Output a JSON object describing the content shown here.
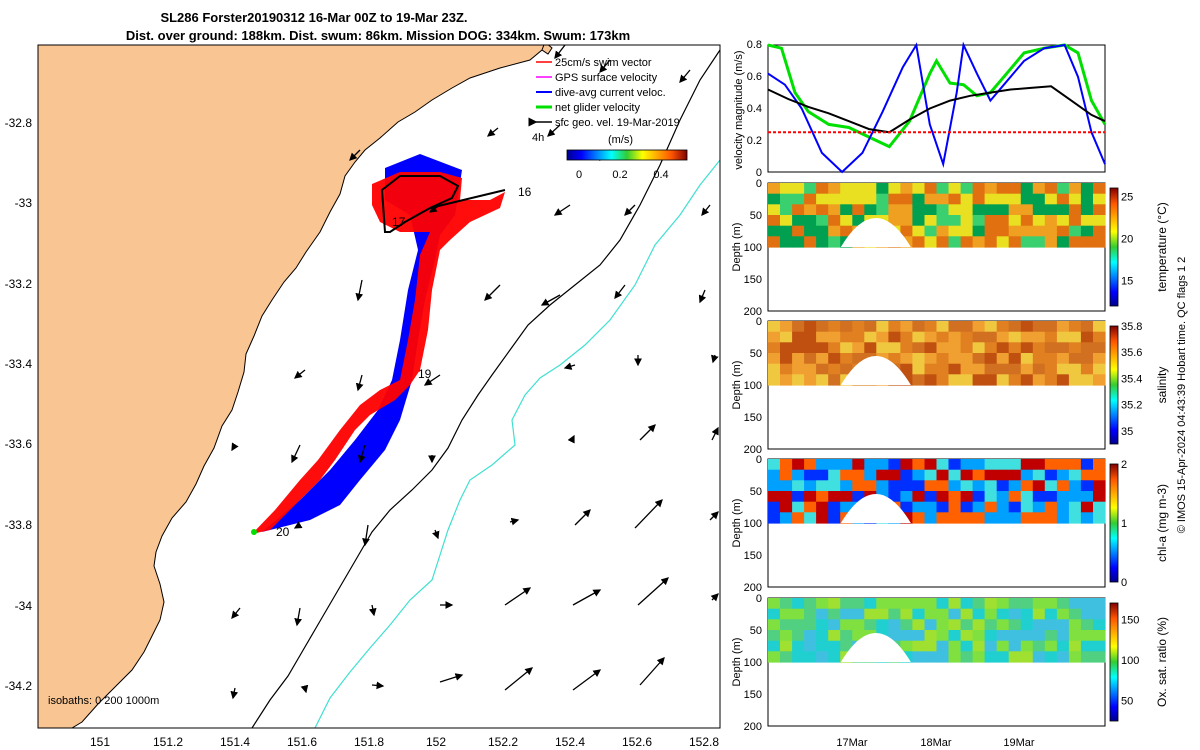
{
  "title": {
    "line1": "SL286 Forster20190312 16-Mar 00Z to 19-Mar 23Z.",
    "line2": "Dist. over ground: 188km. Dist. swum: 86km. Mission DOG: 334km. Swum: 173km"
  },
  "colors": {
    "land": "#f9c593",
    "swim_vector": "#ff0000",
    "gps_velocity": "#ff00ff",
    "dive_avg_current": "#0000ff",
    "net_glider_velocity": "#00e000",
    "sfc_geo_vel": "#000000",
    "isobath_200": "#000000",
    "isobath_1000": "#40e0d0"
  },
  "map": {
    "x_ticks": [
      "151",
      "151.2",
      "151.4",
      "151.6",
      "151.8",
      "152",
      "152.2",
      "152.4",
      "152.6",
      "152.8"
    ],
    "y_ticks": [
      "-32.8",
      "-33",
      "-33.2",
      "-33.4",
      "-33.6",
      "-33.8",
      "-34",
      "-34.2"
    ],
    "legend": [
      {
        "label": "25cm/s swim vector",
        "color": "#ff0000"
      },
      {
        "label": "GPS surface velocity",
        "color": "#ff00ff"
      },
      {
        "label": "dive-avg current veloc.",
        "color": "#0000ff"
      },
      {
        "label": "net glider velocity",
        "color": "#00e000"
      },
      {
        "label": "sfc geo. vel. 19-Mar-2019",
        "color": "#000000"
      }
    ],
    "colorbar_unit": "(m/s)",
    "colorbar_ticks": [
      "0",
      "0.2",
      "0.4"
    ],
    "vector_label": "4h",
    "isobaths_label": "isobaths: 0   200  1000m",
    "day_labels": [
      "16",
      "17",
      "19",
      "20"
    ]
  },
  "chart_data": [
    {
      "type": "line",
      "ylabel": "velocity magnitude (m/s)",
      "ylim": [
        0,
        0.8
      ],
      "y_ticks": [
        "0",
        "0.2",
        "0.4",
        "0.6",
        "0.8"
      ],
      "x_ticks": [
        "17Mar",
        "18Mar",
        "19Mar"
      ],
      "series": [
        {
          "color": "#00e000",
          "x": [
            0,
            0.04,
            0.08,
            0.12,
            0.18,
            0.24,
            0.3,
            0.36,
            0.42,
            0.48,
            0.5,
            0.54,
            0.58,
            0.62,
            0.66,
            0.7,
            0.76,
            0.82,
            0.88,
            0.92,
            0.96,
            1.0
          ],
          "y": [
            0.82,
            0.78,
            0.5,
            0.38,
            0.3,
            0.28,
            0.22,
            0.16,
            0.32,
            0.62,
            0.7,
            0.56,
            0.55,
            0.48,
            0.5,
            0.6,
            0.75,
            0.78,
            0.8,
            0.75,
            0.45,
            0.3
          ]
        },
        {
          "color": "#0000ff",
          "x": [
            0,
            0.05,
            0.1,
            0.16,
            0.22,
            0.28,
            0.34,
            0.4,
            0.44,
            0.48,
            0.52,
            0.56,
            0.58,
            0.62,
            0.66,
            0.7,
            0.76,
            0.82,
            0.88,
            0.92,
            0.96,
            1.0
          ],
          "y": [
            0.62,
            0.55,
            0.4,
            0.12,
            0.0,
            0.12,
            0.38,
            0.66,
            0.85,
            0.3,
            0.05,
            0.5,
            0.85,
            0.62,
            0.45,
            0.55,
            0.7,
            0.78,
            0.82,
            0.6,
            0.25,
            0.05
          ]
        },
        {
          "color": "#000000",
          "x": [
            0,
            0.06,
            0.12,
            0.18,
            0.24,
            0.3,
            0.36,
            0.42,
            0.48,
            0.54,
            0.6,
            0.66,
            0.72,
            0.78,
            0.84,
            0.9,
            0.96,
            1.0
          ],
          "y": [
            0.52,
            0.46,
            0.41,
            0.37,
            0.32,
            0.27,
            0.25,
            0.33,
            0.4,
            0.45,
            0.48,
            0.5,
            0.52,
            0.53,
            0.54,
            0.45,
            0.36,
            0.32
          ]
        },
        {
          "color": "#ff0000",
          "dashed": true,
          "x": [
            0,
            1.0
          ],
          "y": [
            0.25,
            0.25
          ]
        }
      ]
    },
    {
      "type": "heatmap",
      "variable": "temperature",
      "ylabel": "Depth (m)",
      "cbar_label": "temperature (°C)",
      "y_ticks": [
        "0",
        "50",
        "100",
        "150",
        "200"
      ],
      "cbar_ticks": [
        "25",
        "20",
        "15"
      ],
      "cbar_range": [
        12,
        26
      ]
    },
    {
      "type": "heatmap",
      "variable": "salinity",
      "ylabel": "Depth (m)",
      "cbar_label": "salinity",
      "y_ticks": [
        "0",
        "50",
        "100",
        "150",
        "200"
      ],
      "cbar_ticks": [
        "35.8",
        "35.6",
        "35.4",
        "35.2",
        "35"
      ],
      "cbar_range": [
        34.9,
        35.8
      ]
    },
    {
      "type": "heatmap",
      "variable": "chl-a",
      "ylabel": "Depth (m)",
      "cbar_label": "chl-a (mg m-3)",
      "y_ticks": [
        "0",
        "50",
        "100",
        "150",
        "200"
      ],
      "cbar_ticks": [
        "2",
        "1",
        "0"
      ],
      "cbar_range": [
        0,
        2
      ]
    },
    {
      "type": "heatmap",
      "variable": "oxygen",
      "ylabel": "Depth (m)",
      "cbar_label": "Ox. sat. ratio (%)",
      "y_ticks": [
        "0",
        "50",
        "100",
        "150",
        "200"
      ],
      "x_ticks": [
        "17Mar",
        "18Mar",
        "19Mar"
      ],
      "cbar_ticks": [
        "150",
        "100",
        "50"
      ],
      "cbar_range": [
        25,
        170
      ]
    }
  ],
  "credit": "© IMOS 15-Apr-2024 04:43:39 Hobart time. QC flags 1  2"
}
